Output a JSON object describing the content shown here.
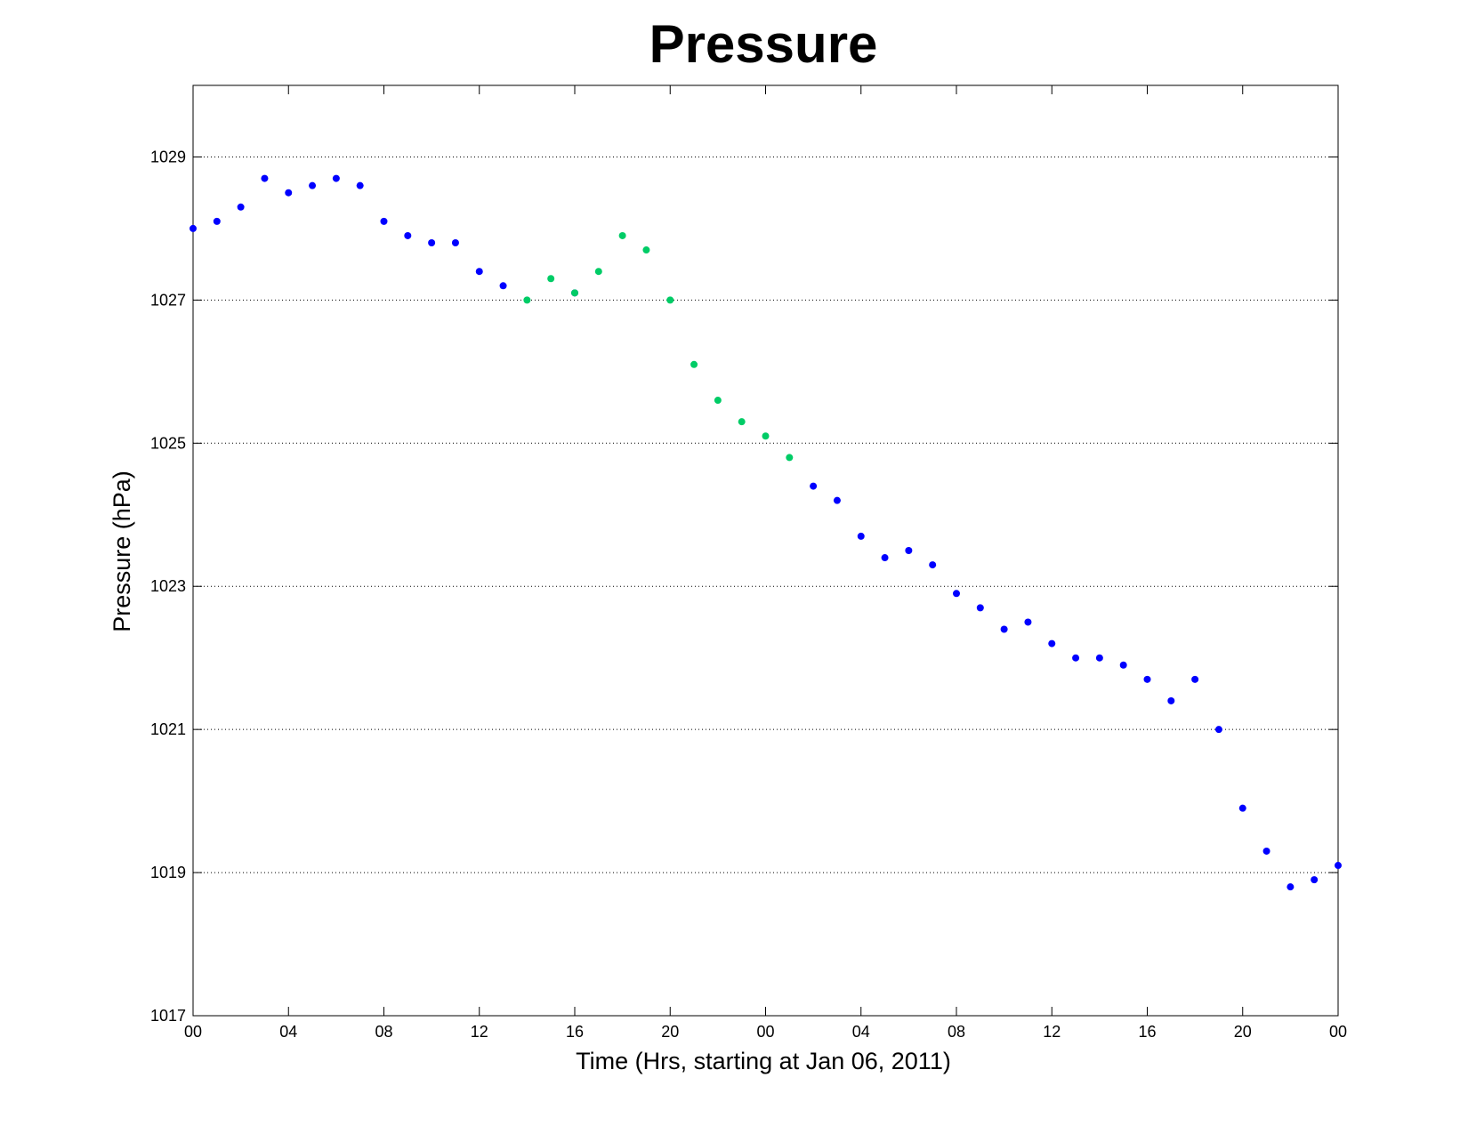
{
  "chart_data": {
    "type": "scatter",
    "title": "Pressure",
    "xlabel": "Time (Hrs, starting at Jan 06, 2011)",
    "ylabel": "Pressure (hPa)",
    "xlim": [
      0,
      48
    ],
    "ylim": [
      1017,
      1030
    ],
    "x_tick_values": [
      0,
      4,
      8,
      12,
      16,
      20,
      24,
      28,
      32,
      36,
      40,
      44,
      48
    ],
    "x_tick_labels": [
      "00",
      "04",
      "08",
      "12",
      "16",
      "20",
      "00",
      "04",
      "08",
      "12",
      "16",
      "20",
      "00"
    ],
    "y_ticks": [
      1017,
      1019,
      1021,
      1023,
      1025,
      1027,
      1029
    ],
    "grid": "horizontal dotted",
    "colors": {
      "blue": "#0000ff",
      "green": "#00cc66"
    },
    "series": [
      {
        "color": "#0000ff",
        "x": [
          0,
          1,
          2,
          3,
          4,
          5,
          6,
          7,
          8,
          9,
          10,
          11,
          12,
          13,
          16,
          26,
          27,
          28,
          29,
          30,
          31,
          32,
          33,
          34,
          35,
          36,
          37,
          38,
          39,
          40,
          41,
          42,
          43,
          44,
          45,
          46,
          47,
          48
        ],
        "y": [
          1028.0,
          1028.1,
          1028.3,
          1028.7,
          1028.5,
          1028.6,
          1028.7,
          1028.6,
          1028.1,
          1027.9,
          1027.8,
          1027.8,
          1027.4,
          1027.2,
          1027.1,
          1024.4,
          1024.2,
          1023.7,
          1023.4,
          1023.5,
          1023.3,
          1022.9,
          1022.7,
          1022.4,
          1022.5,
          1022.2,
          1022.0,
          1022.0,
          1021.9,
          1021.7,
          1021.4,
          1021.7,
          1021.0,
          1019.9,
          1019.3,
          1018.8,
          1018.9,
          1019.1
        ]
      },
      {
        "color": "#00cc66",
        "x": [
          14,
          15,
          16,
          17,
          18,
          19,
          20,
          21,
          22,
          23,
          24,
          25
        ],
        "y": [
          1027.0,
          1027.3,
          1027.1,
          1027.4,
          1027.9,
          1027.7,
          1027.0,
          1026.1,
          1025.6,
          1025.3,
          1025.1,
          1024.8
        ]
      }
    ]
  }
}
